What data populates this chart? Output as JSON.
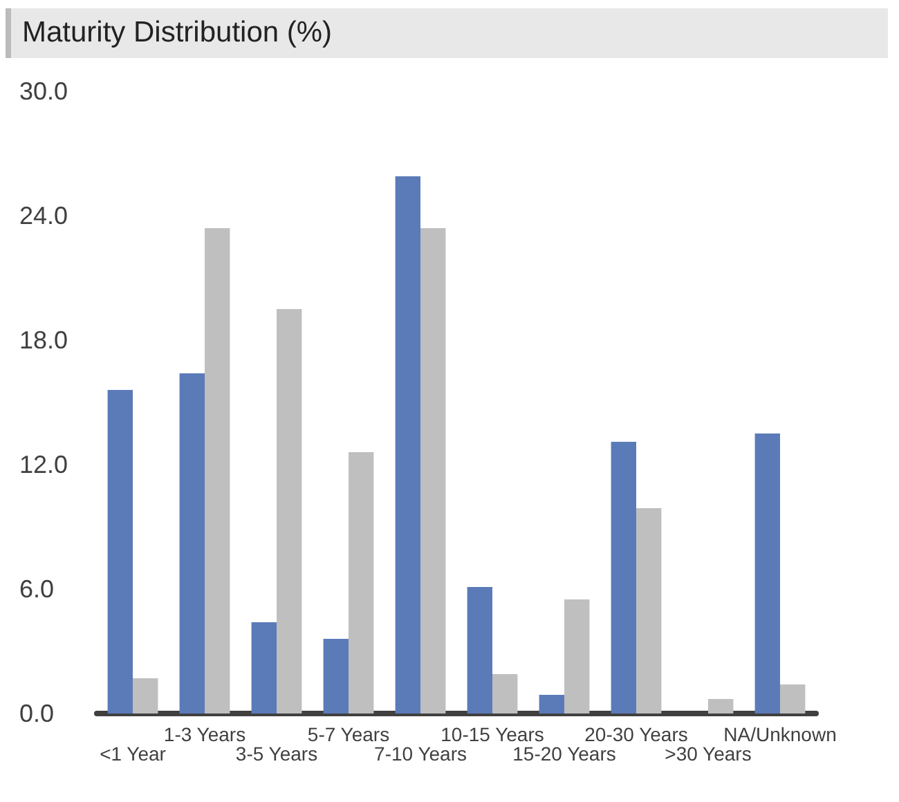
{
  "chart_data": {
    "type": "bar",
    "title": "Maturity Distribution (%)",
    "categories": [
      "<1 Year",
      "1-3 Years",
      "3-5 Years",
      "5-7 Years",
      "7-10 Years",
      "10-15 Years",
      "15-20 Years",
      "20-30 Years",
      ">30 Years",
      "NA/Unknown"
    ],
    "series": [
      {
        "color": "#5b7bb8",
        "values": [
          15.6,
          16.4,
          4.4,
          3.6,
          25.9,
          6.1,
          0.9,
          13.1,
          0,
          13.5
        ]
      },
      {
        "color": "#bfbfbf",
        "values": [
          1.7,
          23.4,
          19.5,
          12.6,
          23.4,
          1.9,
          5.5,
          9.9,
          0.7,
          1.4
        ]
      }
    ],
    "ylim": [
      0,
      30
    ],
    "yticks": [
      {
        "value": 0,
        "label": "0.0"
      },
      {
        "value": 6,
        "label": "6.0"
      },
      {
        "value": 12,
        "label": "12.0"
      },
      {
        "value": 18,
        "label": "18.0"
      },
      {
        "value": 24,
        "label": "24.0"
      },
      {
        "value": 30,
        "label": "30.0"
      }
    ],
    "grid": false
  }
}
